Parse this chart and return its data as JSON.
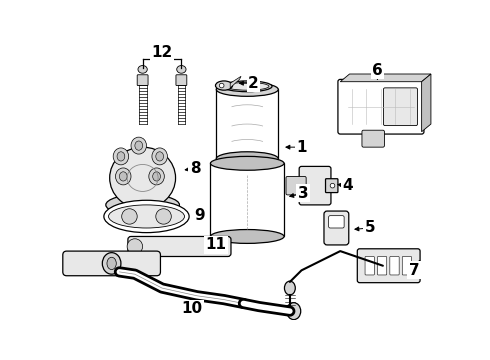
{
  "background_color": "#ffffff",
  "line_color": "#000000",
  "gray_fill": "#e8e8e8",
  "dark_gray": "#c0c0c0",
  "mid_gray": "#d4d4d4"
}
